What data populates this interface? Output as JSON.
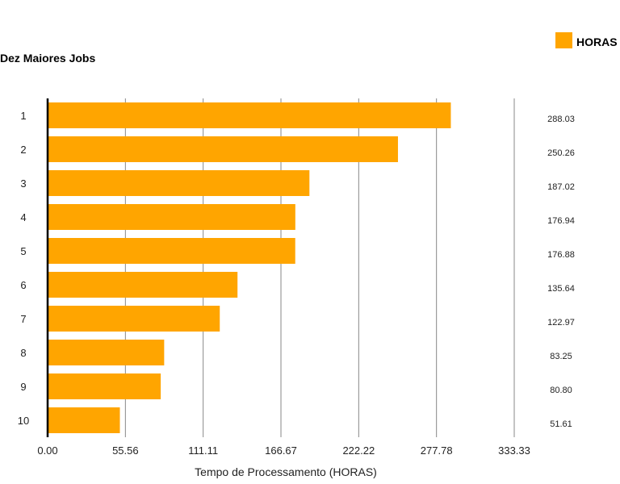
{
  "chart_data": {
    "type": "bar",
    "orientation": "horizontal",
    "title": "Dez Maiores Jobs",
    "xlabel": "Tempo de Processamento (HORAS)",
    "ylabel": "",
    "xlim": [
      0,
      333.33
    ],
    "x_ticks": [
      "0.00",
      "55.56",
      "111.11",
      "166.67",
      "222.22",
      "277.78",
      "333.33"
    ],
    "x_tick_values": [
      0,
      55.56,
      111.11,
      166.67,
      222.22,
      277.78,
      333.33
    ],
    "grid": true,
    "legend": {
      "position": "top-right"
    },
    "categories": [
      "1",
      "2",
      "3",
      "4",
      "5",
      "6",
      "7",
      "8",
      "9",
      "10"
    ],
    "series": [
      {
        "name": "HORAS",
        "color": "#FFA500",
        "values": [
          288.03,
          250.26,
          187.02,
          176.94,
          176.88,
          135.64,
          122.97,
          83.25,
          80.8,
          51.61
        ],
        "value_labels": [
          "288.03",
          "250.26",
          "187.02",
          "176.94",
          "176.88",
          "135.64",
          "122.97",
          "83.25",
          "80.80",
          "51.61"
        ]
      }
    ]
  }
}
